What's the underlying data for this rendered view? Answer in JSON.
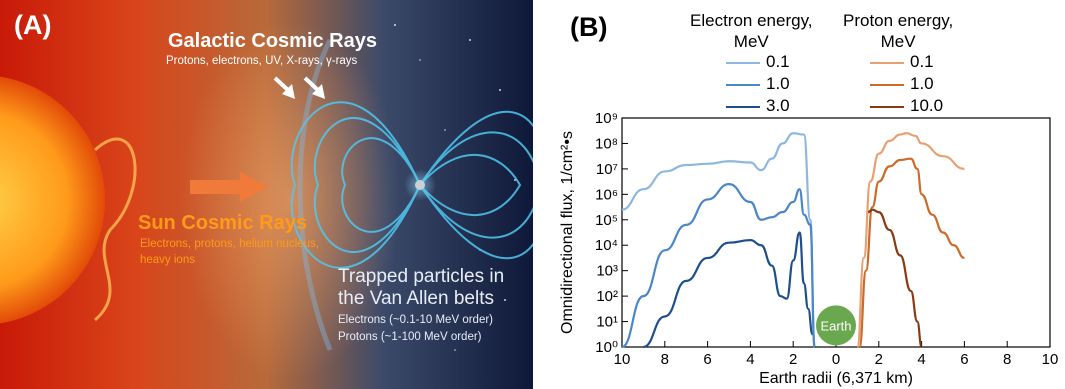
{
  "panel_a": {
    "label": "(A)",
    "galactic": {
      "title": "Galactic Cosmic Rays",
      "subtitle": "Protons, electrons, UV, X-rays, γ-rays"
    },
    "sun": {
      "title": "Sun Cosmic Rays",
      "subtitle_1": "Electrons, protons, helium nucleus,",
      "subtitle_2": "heavy ions"
    },
    "trapped": {
      "title_1": "Trapped particles in",
      "title_2": "the Van Allen belts",
      "line_1": "Electrons (~0.1-10 MeV order)",
      "line_2": "Protons (~1-100 MeV order)"
    }
  },
  "panel_b": {
    "label": "(B)",
    "earth_label": "Earth",
    "legend_electron_title_1": "Electron energy,",
    "legend_electron_title_2": "MeV",
    "legend_proton_title_1": "Proton energy,",
    "legend_proton_title_2": "MeV",
    "electron_entries": [
      "0.1",
      "1.0",
      "3.0"
    ],
    "proton_entries": [
      "0.1",
      "1.0",
      "10.0"
    ]
  },
  "colors": {
    "electron_0_1": "#8fb6e0",
    "electron_1_0": "#4a86c8",
    "electron_3_0": "#1f4e8c",
    "proton_0_1": "#e8a070",
    "proton_1_0": "#cc6a2a",
    "proton_10_0": "#8a3a10",
    "earth": "#6aa84f"
  },
  "chart_data": {
    "type": "line",
    "title": "",
    "xlabel": "Earth radii (6,371 km)",
    "ylabel": "Omnidirectional flux, 1/cm²•s",
    "x_ticks": [
      "10",
      "8",
      "6",
      "4",
      "2",
      "0",
      "2",
      "4",
      "6",
      "8",
      "10"
    ],
    "y_ticks": [
      "10⁰",
      "10¹",
      "10²",
      "10³",
      "10⁴",
      "10⁵",
      "10⁶",
      "10⁷",
      "10⁸",
      "10⁹"
    ],
    "xlim": [
      -10,
      10
    ],
    "ylim_log10": [
      0,
      9
    ],
    "y_scale": "log",
    "series": [
      {
        "name": "Electron 0.1 MeV",
        "x": [
          -10,
          -9,
          -8,
          -7,
          -6,
          -5,
          -4,
          -3.5,
          -3,
          -2.5,
          -2,
          -1.5,
          -1.2,
          -1
        ],
        "log10_y": [
          5.4,
          6.2,
          6.9,
          7.15,
          7.2,
          7.3,
          7.25,
          6.95,
          7.4,
          8.0,
          8.4,
          8.35,
          5.0,
          0
        ]
      },
      {
        "name": "Electron 1.0 MeV",
        "x": [
          -10,
          -9,
          -8,
          -7,
          -6,
          -5,
          -4,
          -3.5,
          -3,
          -2.5,
          -2,
          -1.7,
          -1.5,
          -1.2,
          -1
        ],
        "log10_y": [
          0,
          2.0,
          3.8,
          4.8,
          5.8,
          6.4,
          5.7,
          5.0,
          5.1,
          5.3,
          5.7,
          6.2,
          5.2,
          4.8,
          0
        ]
      },
      {
        "name": "Electron 3.0 MeV",
        "x": [
          -9,
          -8,
          -7,
          -6,
          -5,
          -4,
          -3.5,
          -3,
          -2.6,
          -2.3,
          -2,
          -1.7,
          -1.5,
          -1.3,
          -1.1
        ],
        "log10_y": [
          0,
          1.2,
          2.6,
          3.5,
          4.1,
          4.2,
          4.0,
          3.2,
          2.0,
          1.9,
          3.4,
          4.5,
          2.5,
          1.5,
          0.5
        ]
      },
      {
        "name": "Proton 0.1 MeV",
        "x": [
          1,
          1.3,
          1.6,
          2,
          2.5,
          3,
          3.3,
          3.7,
          4,
          5,
          6
        ],
        "log10_y": [
          0,
          3.5,
          6.5,
          7.6,
          8.1,
          8.35,
          8.4,
          8.3,
          8.0,
          7.5,
          7.0
        ]
      },
      {
        "name": "Proton 1.0 MeV",
        "x": [
          1.1,
          1.4,
          1.7,
          2,
          2.5,
          3,
          3.5,
          3.8,
          4,
          4.5,
          5,
          5.5,
          6
        ],
        "log10_y": [
          0,
          3.0,
          5.5,
          6.5,
          7.1,
          7.35,
          7.4,
          7.0,
          6.0,
          5.2,
          4.5,
          4.0,
          3.5
        ]
      },
      {
        "name": "Proton 10.0 MeV",
        "x": [
          1.5,
          1.7,
          2,
          2.5,
          3,
          3.5,
          3.8,
          4
        ],
        "log10_y": [
          5.3,
          5.4,
          5.3,
          4.6,
          3.6,
          2.2,
          1.0,
          0
        ]
      }
    ]
  }
}
